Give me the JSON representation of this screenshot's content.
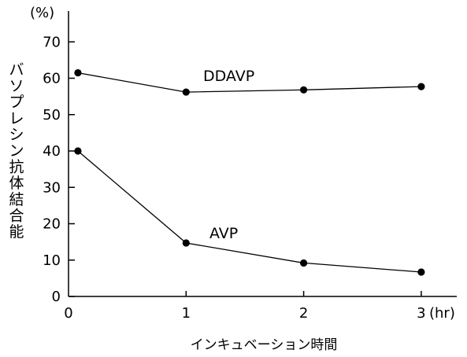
{
  "chart_data": {
    "type": "line",
    "title": "",
    "xlabel": "インキュベーション時間",
    "ylabel": "バソプレシン抗体結合能",
    "x_unit": "(hr)",
    "y_unit": "(%)",
    "xlim": [
      0,
      3
    ],
    "ylim": [
      0,
      70
    ],
    "x_ticks": [
      0,
      1,
      2,
      3
    ],
    "y_ticks": [
      0,
      10,
      20,
      30,
      40,
      50,
      60,
      70
    ],
    "grid": false,
    "legend": "none",
    "series": [
      {
        "name": "DDAVP",
        "x": [
          0.08,
          1,
          2,
          3
        ],
        "values": [
          61.5,
          56.2,
          56.8,
          57.7
        ],
        "color": "#000000"
      },
      {
        "name": "AVP",
        "x": [
          0.08,
          1,
          2,
          3
        ],
        "values": [
          40,
          14.7,
          9.2,
          6.7
        ],
        "color": "#000000"
      }
    ]
  }
}
